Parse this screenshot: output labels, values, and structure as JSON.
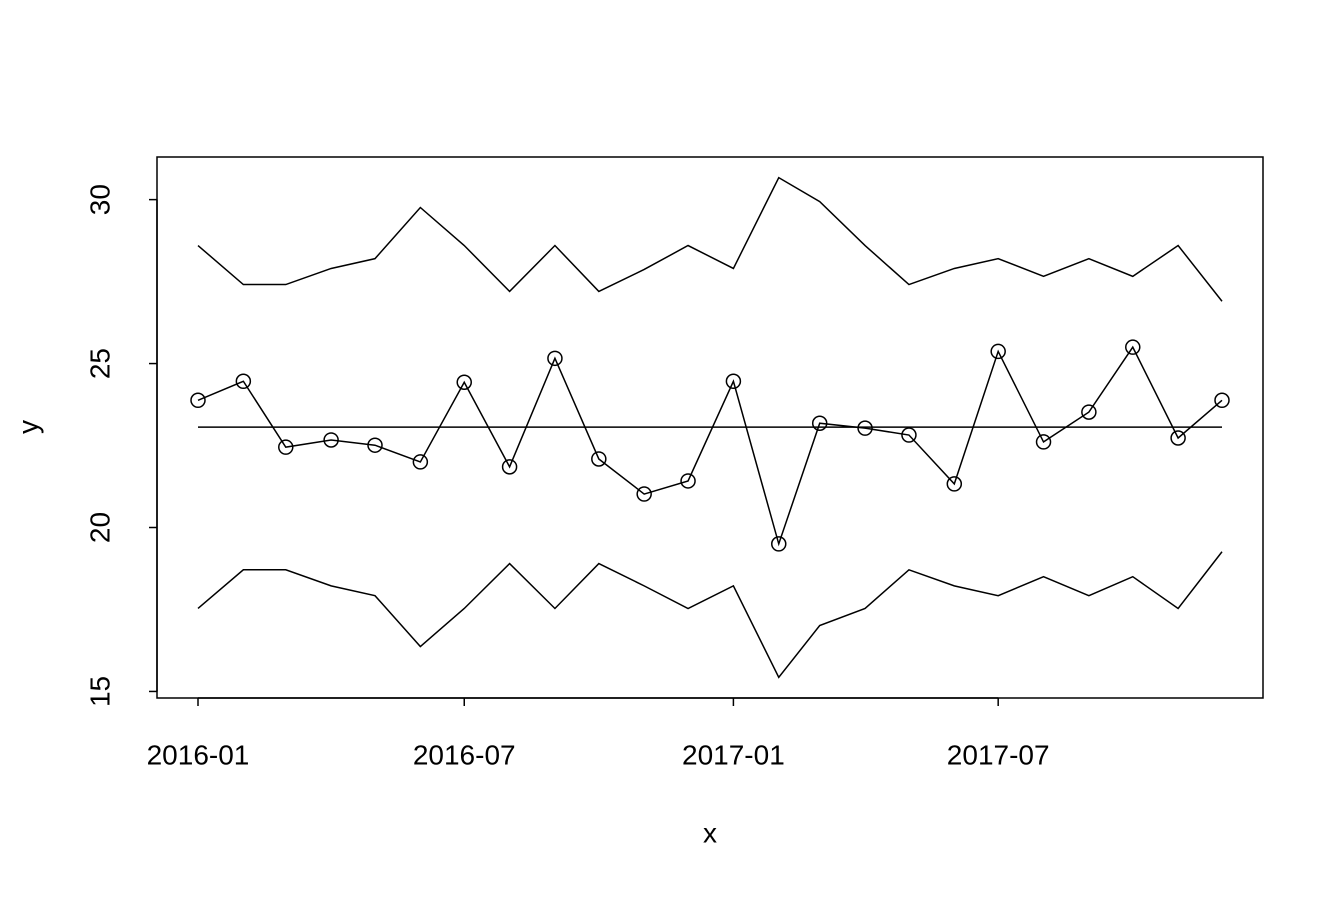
{
  "chart_data": {
    "type": "line",
    "x": [
      "2016-01",
      "2016-02",
      "2016-03",
      "2016-04",
      "2016-05",
      "2016-06",
      "2016-07",
      "2016-08",
      "2016-09",
      "2016-10",
      "2016-11",
      "2016-12",
      "2017-01",
      "2017-02",
      "2017-03",
      "2017-04",
      "2017-05",
      "2017-06",
      "2017-07",
      "2017-08",
      "2017-09",
      "2017-10",
      "2017-11",
      "2017-12"
    ],
    "series": [
      {
        "color": "#000000",
        "markers": false,
        "values": [
          28.6,
          27.41,
          27.41,
          27.9,
          28.2,
          29.76,
          28.6,
          27.2,
          28.6,
          27.2,
          27.87,
          28.6,
          27.9,
          30.67,
          29.94,
          28.6,
          27.41,
          27.9,
          28.2,
          27.66,
          28.2,
          27.66,
          28.6,
          26.9
        ]
      },
      {
        "color": "#000000",
        "markers": true,
        "values": [
          23.88,
          24.46,
          22.45,
          22.67,
          22.51,
          22.0,
          24.43,
          21.85,
          25.16,
          22.09,
          21.02,
          21.42,
          24.46,
          19.5,
          23.18,
          23.03,
          22.82,
          21.33,
          25.37,
          22.61,
          23.52,
          25.5,
          22.73,
          23.88
        ]
      },
      {
        "color": "#000000",
        "markers": false,
        "values": [
          23.06,
          23.06,
          23.06,
          23.06,
          23.06,
          23.06,
          23.06,
          23.06,
          23.06,
          23.06,
          23.06,
          23.06,
          23.06,
          23.06,
          23.06,
          23.06,
          23.06,
          23.06,
          23.06,
          23.06,
          23.06,
          23.06,
          23.06,
          23.06
        ]
      },
      {
        "color": "#000000",
        "markers": false,
        "values": [
          17.53,
          18.71,
          18.71,
          18.22,
          17.92,
          16.37,
          17.53,
          18.9,
          17.53,
          18.9,
          18.22,
          17.53,
          18.22,
          15.43,
          17.01,
          17.53,
          18.71,
          18.22,
          17.92,
          18.5,
          17.92,
          18.5,
          17.53,
          19.26
        ]
      }
    ],
    "xlim": [
      "2016-01",
      "2017-12"
    ],
    "xticks": [
      "2016-01",
      "2016-07",
      "2017-01",
      "2017-07"
    ],
    "ylim": [
      14.8,
      31.3
    ],
    "yticks": [
      15,
      20,
      25,
      30
    ],
    "x_label": "x",
    "y_label": "y",
    "grid": false
  }
}
